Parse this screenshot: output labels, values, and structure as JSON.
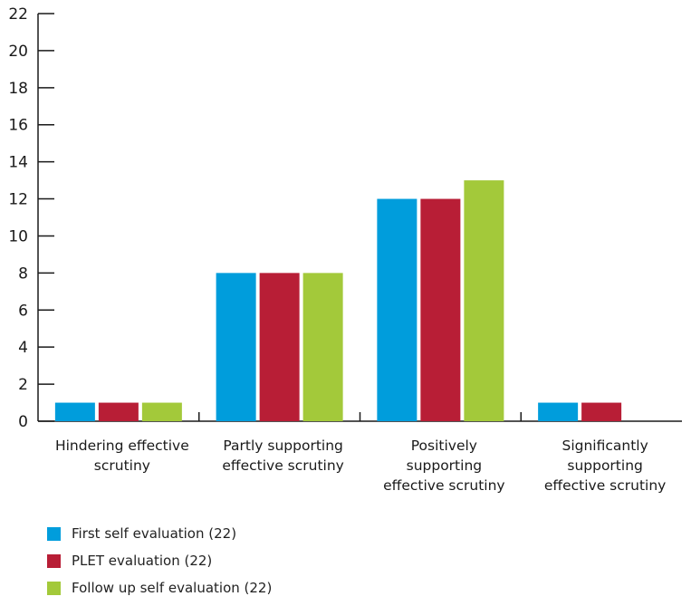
{
  "chart_data": {
    "type": "bar",
    "categories": [
      [
        "Hindering effective",
        "scrutiny"
      ],
      [
        "Partly supporting",
        "effective scrutiny"
      ],
      [
        "Positively",
        "supporting",
        "effective scrutiny"
      ],
      [
        "Significantly",
        "supporting",
        "effective scrutiny"
      ]
    ],
    "series": [
      {
        "name": "First self evaluation (22)",
        "color": "#009ddc",
        "values": [
          1,
          8,
          12,
          1
        ]
      },
      {
        "name": "PLET evaluation (22)",
        "color": "#b81e36",
        "values": [
          1,
          8,
          12,
          1
        ]
      },
      {
        "name": "Follow up self evaluation (22)",
        "color": "#a3c93a",
        "values": [
          1,
          8,
          13,
          0
        ]
      }
    ],
    "ylim": [
      0,
      22
    ],
    "yticks": [
      0,
      2,
      4,
      6,
      8,
      10,
      12,
      14,
      16,
      18,
      20,
      22
    ],
    "legend_position": "bottom-left",
    "grid": false
  }
}
